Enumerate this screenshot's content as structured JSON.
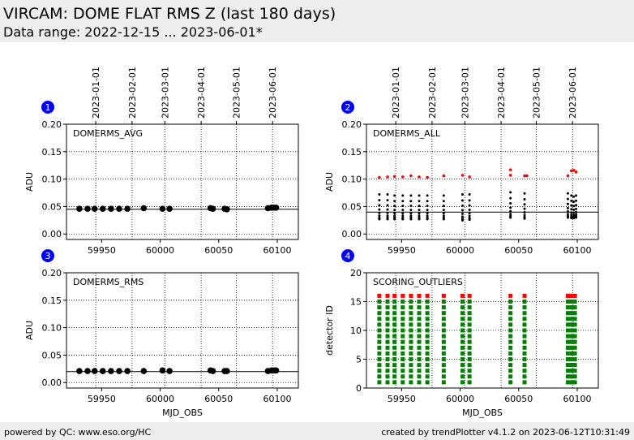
{
  "header": {
    "title": "VIRCAM: DOME FLAT RMS Z (last 180 days)",
    "subtitle": "Data range: 2022-12-15 ... 2023-06-01*"
  },
  "footer": {
    "left": "powered by QC: www.eso.org/HC",
    "right": "created by trendPlotter v4.1.2 on 2023-06-12T10:31:49"
  },
  "colors": {
    "data": "#000000",
    "outlier": "#ff0000",
    "good": "#008000",
    "badge": "#0000ff"
  },
  "date_axis": {
    "ticks": [
      "2023-01-01",
      "2023-02-01",
      "2023-03-01",
      "2023-04-01",
      "2023-05-01",
      "2023-06-01"
    ],
    "mjd": [
      59945,
      59976,
      60004,
      60035,
      60065,
      60096
    ]
  },
  "chart_data": [
    {
      "id": "1",
      "type": "scatter",
      "label": "DOMERMS_AVG",
      "xlabel": "",
      "ylabel": "ADU",
      "xlim": [
        59920,
        60118
      ],
      "ylim": [
        -0.01,
        0.2
      ],
      "yticks": [
        "0.00",
        "0.05",
        "0.10",
        "0.15",
        "0.20"
      ],
      "ytick_values": [
        0,
        0.05,
        0.1,
        0.15,
        0.2
      ],
      "xticks": [
        "59950",
        "60000",
        "60050",
        "60100"
      ],
      "xtick_values": [
        59950,
        60000,
        60050,
        60100
      ],
      "reference_lines": [
        0.045
      ],
      "grid": true,
      "series": [
        {
          "x": [
            59931,
            59938,
            59944,
            59951,
            59958,
            59965,
            59972,
            59986,
            60002,
            60008,
            60043,
            60045,
            60055,
            60057,
            60092,
            60095,
            60097,
            60099
          ],
          "y": [
            0.046,
            0.046,
            0.046,
            0.046,
            0.046,
            0.046,
            0.046,
            0.047,
            0.046,
            0.046,
            0.047,
            0.046,
            0.046,
            0.045,
            0.047,
            0.048,
            0.048,
            0.048
          ]
        }
      ]
    },
    {
      "id": "2",
      "type": "scatter",
      "label": "DOMERMS_ALL",
      "xlabel": "",
      "ylabel": "ADU",
      "xlim": [
        59920,
        60118
      ],
      "ylim": [
        -0.01,
        0.2
      ],
      "yticks": [
        "0.00",
        "0.05",
        "0.10",
        "0.15",
        "0.20"
      ],
      "ytick_values": [
        0,
        0.05,
        0.1,
        0.15,
        0.2
      ],
      "xticks": [
        "59950",
        "60000",
        "60050",
        "60100"
      ],
      "xtick_values": [
        59950,
        60000,
        60050,
        60100
      ],
      "reference_lines": [
        0.04
      ],
      "grid": true,
      "series": [
        {
          "name": "",
          "color_key": "data",
          "x": [
            59931,
            59938,
            59944,
            59951,
            59958,
            59965,
            59972,
            59986,
            60002,
            60008,
            60043,
            60055,
            60092,
            60095,
            60097,
            60099
          ],
          "ymin": [
            0.027,
            0.027,
            0.027,
            0.027,
            0.027,
            0.027,
            0.027,
            0.027,
            0.025,
            0.026,
            0.03,
            0.028,
            0.03,
            0.029,
            0.029,
            0.03
          ],
          "ymax": [
            0.072,
            0.072,
            0.07,
            0.07,
            0.07,
            0.07,
            0.07,
            0.07,
            0.072,
            0.072,
            0.076,
            0.074,
            0.074,
            0.07,
            0.068,
            0.07
          ]
        },
        {
          "name": "",
          "color_key": "outlier",
          "x": [
            59931,
            59938,
            59944,
            59951,
            59958,
            59965,
            59972,
            59986,
            60002,
            60008,
            60043,
            60043,
            60055,
            60057,
            60092,
            60095,
            60097,
            60099
          ],
          "y": [
            0.103,
            0.104,
            0.105,
            0.104,
            0.106,
            0.104,
            0.103,
            0.106,
            0.107,
            0.104,
            0.117,
            0.107,
            0.106,
            0.106,
            0.106,
            0.115,
            0.116,
            0.113
          ]
        }
      ]
    },
    {
      "id": "3",
      "type": "scatter",
      "label": "DOMERMS_RMS",
      "xlabel": "MJD_OBS",
      "ylabel": "ADU",
      "xlim": [
        59920,
        60118
      ],
      "ylim": [
        -0.01,
        0.2
      ],
      "yticks": [
        "0.00",
        "0.05",
        "0.10",
        "0.15",
        "0.20"
      ],
      "ytick_values": [
        0,
        0.05,
        0.1,
        0.15,
        0.2
      ],
      "xticks": [
        "59950",
        "60000",
        "60050",
        "60100"
      ],
      "xtick_values": [
        59950,
        60000,
        60050,
        60100
      ],
      "reference_lines": [
        0.02
      ],
      "grid": true,
      "series": [
        {
          "x": [
            59931,
            59938,
            59944,
            59951,
            59958,
            59965,
            59972,
            59986,
            60002,
            60008,
            60043,
            60045,
            60055,
            60057,
            60092,
            60095,
            60097,
            60099
          ],
          "y": [
            0.021,
            0.021,
            0.021,
            0.021,
            0.021,
            0.021,
            0.021,
            0.021,
            0.022,
            0.021,
            0.022,
            0.021,
            0.021,
            0.021,
            0.021,
            0.022,
            0.022,
            0.022
          ]
        }
      ]
    },
    {
      "id": "4",
      "type": "scatter",
      "label": "SCORING_OUTLIERS",
      "xlabel": "MJD_OBS",
      "ylabel": "detector ID",
      "xlim": [
        59920,
        60118
      ],
      "ylim": [
        0,
        20
      ],
      "yticks": [
        "0",
        "5",
        "10",
        "15",
        "20"
      ],
      "ytick_values": [
        0,
        5,
        10,
        15,
        20
      ],
      "xticks": [
        "59950",
        "60000",
        "60050",
        "60100"
      ],
      "xtick_values": [
        59950,
        60000,
        60050,
        60100
      ],
      "reference_lines": [],
      "grid": true,
      "detectors": {
        "good_min": 1,
        "good_max": 15,
        "outlier": 16
      },
      "series": [
        {
          "x": [
            59931,
            59938,
            59944,
            59951,
            59958,
            59965,
            59972,
            59986,
            60002,
            60008,
            60043,
            60055,
            60092,
            60094,
            60096,
            60098
          ]
        }
      ]
    }
  ]
}
